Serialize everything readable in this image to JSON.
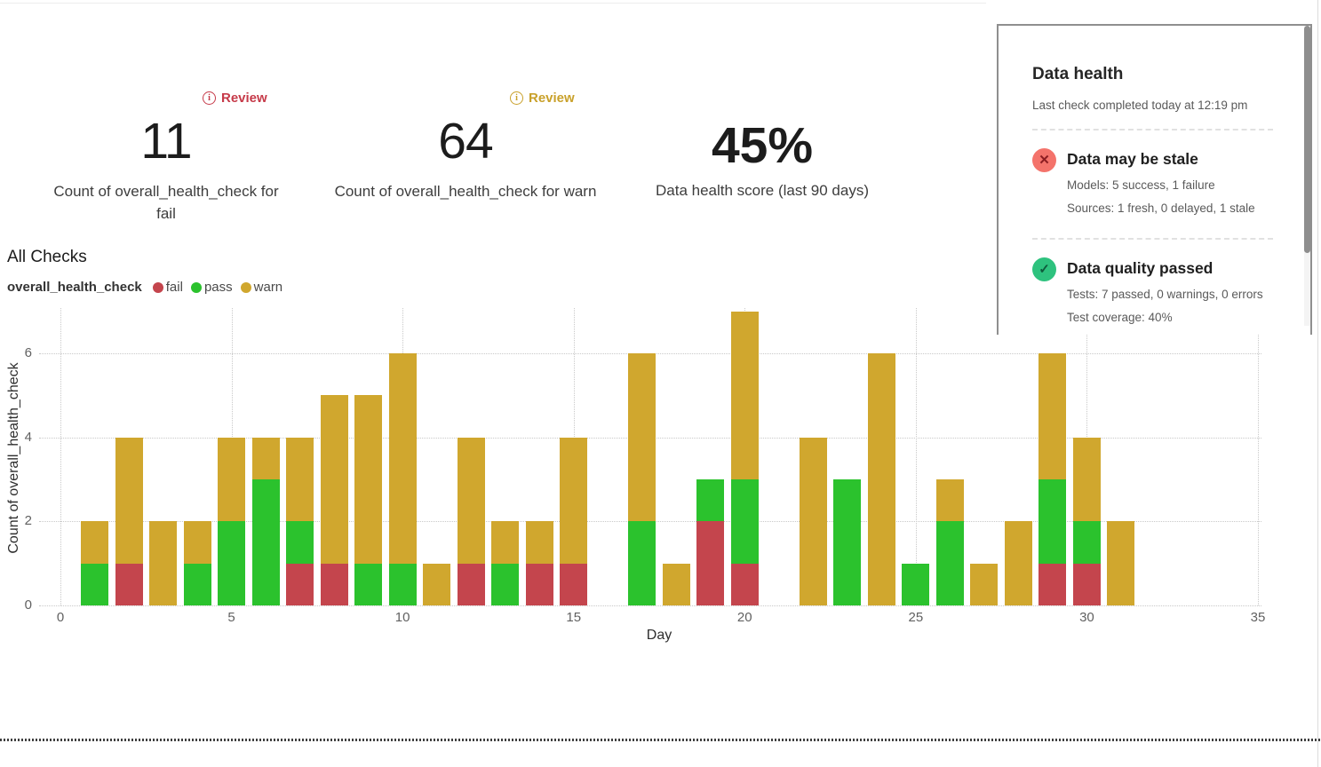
{
  "kpis": [
    {
      "badge": "Review",
      "badge_color": "#c63a49",
      "value": "11",
      "label": "Count of overall_health_check for fail"
    },
    {
      "badge": "Review",
      "badge_color": "#c9a12b",
      "value": "64",
      "label": "Count of overall_health_check for warn"
    },
    {
      "value": "45%",
      "label": "Data health score (last 90 days)"
    }
  ],
  "section_title": "All Checks",
  "legend": {
    "series_name": "overall_health_check",
    "items": [
      {
        "label": "fail",
        "color": "#c4454d"
      },
      {
        "label": "pass",
        "color": "#2bc22d"
      },
      {
        "label": "warn",
        "color": "#d0a72e"
      }
    ]
  },
  "chart_data": {
    "type": "bar",
    "stacked": true,
    "title": "All Checks",
    "xlabel": "Day",
    "ylabel": "Count of overall_health_check",
    "xlim": [
      0,
      35
    ],
    "ylim": [
      0,
      7.1
    ],
    "xticks": [
      0,
      5,
      10,
      15,
      20,
      25,
      30,
      35
    ],
    "yticks": [
      0,
      2,
      4,
      6
    ],
    "grid": "dotted",
    "legend_position": "top-left",
    "x": [
      1,
      2,
      3,
      4,
      5,
      6,
      7,
      8,
      9,
      10,
      11,
      12,
      13,
      14,
      15,
      16,
      17,
      18,
      19,
      20,
      21,
      22,
      23,
      24,
      25,
      26,
      27,
      28,
      29,
      30,
      31
    ],
    "series": [
      {
        "name": "fail",
        "color": "#c4454d",
        "values": [
          0,
          1,
          0,
          0,
          0,
          0,
          1,
          1,
          0,
          0,
          0,
          1,
          0,
          1,
          1,
          0,
          0,
          0,
          2,
          1,
          0,
          0,
          0,
          0,
          0,
          0,
          0,
          0,
          1,
          1,
          0
        ]
      },
      {
        "name": "pass",
        "color": "#2bc22d",
        "values": [
          1,
          0,
          0,
          1,
          2,
          3,
          1,
          0,
          1,
          1,
          0,
          0,
          1,
          0,
          0,
          0,
          2,
          0,
          1,
          2,
          0,
          0,
          3,
          0,
          1,
          2,
          0,
          0,
          2,
          1,
          0
        ]
      },
      {
        "name": "warn",
        "color": "#d0a72e",
        "values": [
          1,
          3,
          2,
          1,
          2,
          1,
          2,
          4,
          4,
          5,
          1,
          3,
          1,
          1,
          3,
          0,
          4,
          1,
          0,
          4,
          0,
          4,
          0,
          6,
          0,
          1,
          1,
          2,
          3,
          2,
          2
        ]
      }
    ]
  },
  "health_panel": {
    "title": "Data health",
    "subtitle": "Last check completed today at 12:19 pm",
    "items": [
      {
        "icon": "x-icon",
        "icon_bg": "#f4736b",
        "icon_fg": "#8c1d22",
        "glyph": "✕",
        "title": "Data may be stale",
        "lines": [
          "Models: 5 success, 1 failure",
          "Sources: 1 fresh, 0 delayed, 1 stale"
        ]
      },
      {
        "icon": "check-icon",
        "icon_bg": "#2ec27e",
        "icon_fg": "#0e5a3c",
        "glyph": "✓",
        "title": "Data quality passed",
        "lines": [
          "Tests: 7 passed, 0 warnings, 0 errors",
          "Test coverage: 40%"
        ]
      }
    ]
  }
}
